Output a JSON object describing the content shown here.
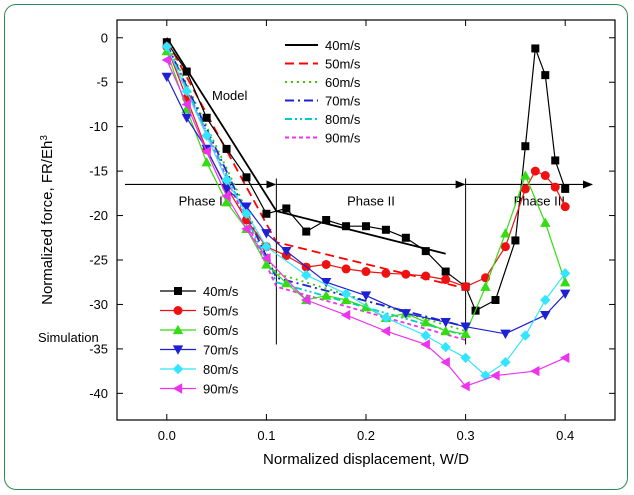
{
  "chart_data": {
    "type": "line",
    "xlabel": "Normalized displacement, W/D",
    "ylabel": "Normalized force, FR/Eh",
    "ylabel_sup": "3",
    "xlim": [
      -0.05,
      0.45
    ],
    "ylim": [
      -43,
      2
    ],
    "xticks": [
      0.0,
      0.1,
      0.2,
      0.3,
      0.4
    ],
    "xtick_labels": [
      "0.0",
      "0.1",
      "0.2",
      "0.3",
      "0.4"
    ],
    "yticks": [
      0,
      -5,
      -10,
      -15,
      -20,
      -25,
      -30,
      -35,
      -40
    ],
    "ytick_labels": [
      "0",
      "-5",
      "-10",
      "-15",
      "-20",
      "-25",
      "-30",
      "-35",
      "-40"
    ],
    "annotations": {
      "model_label": "Model",
      "simulation_label": "Simulation",
      "phase1": "Phase I",
      "phase2": "Phase II",
      "phase3": "Phase III"
    },
    "phase_arrow_y": -16.5,
    "phase_boundaries": [
      0.11,
      0.3
    ],
    "model_series": [
      {
        "name": "40m/s",
        "color": "#000000",
        "dash": "",
        "x": [
          0.0,
          0.11,
          0.28
        ],
        "y": [
          0,
          -19.5,
          -24.3
        ]
      },
      {
        "name": "50m/s",
        "color": "#ff0000",
        "dash": "9,5",
        "x": [
          0.0,
          0.11,
          0.3
        ],
        "y": [
          -0.3,
          -23.0,
          -28.2
        ]
      },
      {
        "name": "60m/s",
        "color": "#33cc00",
        "dash": "2,4",
        "x": [
          0.0,
          0.11,
          0.3
        ],
        "y": [
          -0.5,
          -26.5,
          -33.0
        ]
      },
      {
        "name": "70m/s",
        "color": "#1f1fd6",
        "dash": "9,4,2,4",
        "x": [
          0.0,
          0.11,
          0.3
        ],
        "y": [
          -0.7,
          -27.0,
          -32.5
        ]
      },
      {
        "name": "80m/s",
        "color": "#00cccc",
        "dash": "7,3,2,3,2,3",
        "x": [
          0.0,
          0.11,
          0.3
        ],
        "y": [
          -0.9,
          -27.5,
          -33.5
        ]
      },
      {
        "name": "90m/s",
        "color": "#ee33ee",
        "dash": "4,3",
        "x": [
          0.0,
          0.11,
          0.3
        ],
        "y": [
          -1.1,
          -28.0,
          -34.0
        ]
      }
    ],
    "sim_series": [
      {
        "name": "40m/s",
        "color": "#000000",
        "marker": "square",
        "x": [
          0.0,
          0.02,
          0.04,
          0.06,
          0.08,
          0.1,
          0.12,
          0.14,
          0.16,
          0.18,
          0.2,
          0.22,
          0.24,
          0.26,
          0.28,
          0.3,
          0.31,
          0.33,
          0.35,
          0.36,
          0.37,
          0.38,
          0.39,
          0.4
        ],
        "y": [
          -0.5,
          -3.8,
          -9.0,
          -12.5,
          -15.7,
          -19.8,
          -19.2,
          -21.8,
          -20.5,
          -21.2,
          -21.2,
          -21.6,
          -22.5,
          -24.0,
          -26.3,
          -28.0,
          -30.7,
          -29.5,
          -22.8,
          -12.2,
          -1.2,
          -4.2,
          -13.8,
          -17.0
        ]
      },
      {
        "name": "50m/s",
        "color": "#ee1111",
        "marker": "circle",
        "x": [
          0.0,
          0.02,
          0.04,
          0.06,
          0.08,
          0.1,
          0.12,
          0.14,
          0.16,
          0.18,
          0.2,
          0.22,
          0.24,
          0.26,
          0.28,
          0.3,
          0.32,
          0.34,
          0.36,
          0.37,
          0.38,
          0.39,
          0.4
        ],
        "y": [
          -1.0,
          -6.8,
          -12.6,
          -16.8,
          -20.5,
          -23.5,
          -24.5,
          -25.8,
          -25.5,
          -26.0,
          -26.3,
          -26.5,
          -26.6,
          -26.8,
          -27.2,
          -28.0,
          -27.0,
          -23.5,
          -17.0,
          -15.0,
          -15.5,
          -16.8,
          -19.0
        ]
      },
      {
        "name": "60m/s",
        "color": "#33dd11",
        "marker": "triangle-up",
        "x": [
          0.0,
          0.02,
          0.04,
          0.06,
          0.08,
          0.1,
          0.12,
          0.14,
          0.16,
          0.18,
          0.2,
          0.22,
          0.24,
          0.26,
          0.28,
          0.3,
          0.32,
          0.34,
          0.36,
          0.38,
          0.4
        ],
        "y": [
          -1.5,
          -8.0,
          -14.0,
          -18.5,
          -21.5,
          -25.5,
          -27.6,
          -29.5,
          -29.0,
          -29.5,
          -30.3,
          -31.5,
          -31.0,
          -32.0,
          -33.0,
          -33.3,
          -28.0,
          -22.0,
          -15.5,
          -20.8,
          -27.5
        ]
      },
      {
        "name": "70m/s",
        "color": "#1f1fd6",
        "marker": "triangle-down",
        "x": [
          0.0,
          0.02,
          0.04,
          0.06,
          0.08,
          0.1,
          0.12,
          0.16,
          0.2,
          0.24,
          0.28,
          0.3,
          0.34,
          0.38,
          0.4
        ],
        "y": [
          -4.4,
          -9.0,
          -12.5,
          -17.0,
          -19.0,
          -22.0,
          -24.0,
          -27.5,
          -29.0,
          -31.0,
          -32.0,
          -32.5,
          -33.3,
          -31.2,
          -28.8
        ]
      },
      {
        "name": "80m/s",
        "color": "#33e5ff",
        "marker": "diamond",
        "x": [
          0.0,
          0.02,
          0.04,
          0.06,
          0.08,
          0.1,
          0.14,
          0.18,
          0.22,
          0.26,
          0.28,
          0.3,
          0.32,
          0.34,
          0.36,
          0.38,
          0.4
        ],
        "y": [
          -1.0,
          -6.0,
          -11.0,
          -16.0,
          -19.8,
          -23.5,
          -26.7,
          -28.8,
          -31.5,
          -33.5,
          -34.8,
          -36.0,
          -38.0,
          -36.5,
          -33.5,
          -29.5,
          -26.5
        ]
      },
      {
        "name": "90m/s",
        "color": "#ee33ee",
        "marker": "triangle-left",
        "x": [
          0.0,
          0.02,
          0.04,
          0.06,
          0.08,
          0.1,
          0.14,
          0.18,
          0.22,
          0.26,
          0.28,
          0.3,
          0.33,
          0.37,
          0.4
        ],
        "y": [
          -2.5,
          -7.5,
          -12.8,
          -17.8,
          -21.5,
          -24.8,
          -29.5,
          -31.2,
          -33.0,
          -34.5,
          -36.5,
          -39.2,
          -38.0,
          -37.5,
          -36.0
        ]
      }
    ]
  }
}
